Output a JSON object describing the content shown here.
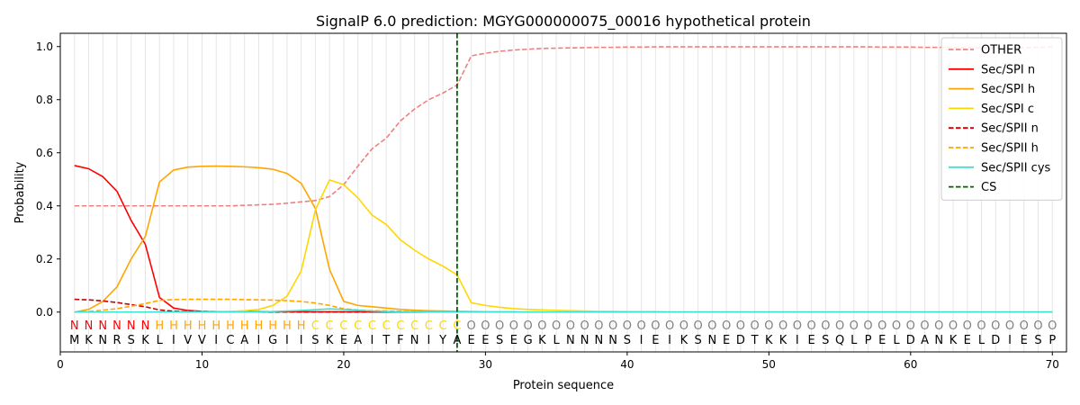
{
  "chart_data": {
    "type": "line",
    "title": "SignalP 6.0 prediction: MGYG000000075_00016 hypothetical protein",
    "xlabel": "Protein sequence",
    "ylabel": "Probability",
    "xlim": [
      0,
      71
    ],
    "ylim": [
      -0.15,
      1.05
    ],
    "xticks": [
      0,
      10,
      20,
      30,
      40,
      50,
      60,
      70
    ],
    "yticks": [
      0.0,
      0.2,
      0.4,
      0.6,
      0.8,
      1.0
    ],
    "ytick_labels": [
      "0.0",
      "0.2",
      "0.4",
      "0.6",
      "0.8",
      "1.0"
    ],
    "grid": "vertical lines at each residue",
    "legend_position": "top-right",
    "sequence": [
      "M",
      "K",
      "N",
      "R",
      "S",
      "K",
      "L",
      "I",
      "V",
      "V",
      "I",
      "C",
      "A",
      "I",
      "G",
      "I",
      "I",
      "S",
      "K",
      "E",
      "A",
      "I",
      "T",
      "F",
      "N",
      "I",
      "Y",
      "A",
      "E",
      "E",
      "S",
      "E",
      "G",
      "K",
      "L",
      "N",
      "N",
      "N",
      "N",
      "S",
      "I",
      "E",
      "I",
      "K",
      "S",
      "N",
      "E",
      "D",
      "T",
      "K",
      "K",
      "I",
      "E",
      "S",
      "Q",
      "L",
      "P",
      "E",
      "L",
      "D",
      "A",
      "N",
      "K",
      "E",
      "L",
      "D",
      "I",
      "E",
      "S",
      "P"
    ],
    "region_labels": [
      "N",
      "N",
      "N",
      "N",
      "N",
      "N",
      "H",
      "H",
      "H",
      "H",
      "H",
      "H",
      "H",
      "H",
      "H",
      "H",
      "H",
      "C",
      "C",
      "C",
      "C",
      "C",
      "C",
      "C",
      "C",
      "C",
      "C",
      "C",
      "O",
      "O",
      "O",
      "O",
      "O",
      "O",
      "O",
      "O",
      "O",
      "O",
      "O",
      "O",
      "O",
      "O",
      "O",
      "O",
      "O",
      "O",
      "O",
      "O",
      "O",
      "O",
      "O",
      "O",
      "O",
      "O",
      "O",
      "O",
      "O",
      "O",
      "O",
      "O",
      "O",
      "O",
      "O",
      "O",
      "O",
      "O",
      "O",
      "O",
      "O",
      "O"
    ],
    "cleavage_site": {
      "name": "CS",
      "x": 28,
      "color": "#006400"
    },
    "series": [
      {
        "name": "OTHER",
        "color": "#f08080",
        "dash": true,
        "values": [
          0.4,
          0.4,
          0.4,
          0.4,
          0.4,
          0.4,
          0.4,
          0.4,
          0.4,
          0.4,
          0.4,
          0.4,
          0.402,
          0.404,
          0.406,
          0.41,
          0.415,
          0.42,
          0.435,
          0.48,
          0.55,
          0.615,
          0.655,
          0.72,
          0.765,
          0.8,
          0.825,
          0.855,
          0.965,
          0.975,
          0.982,
          0.987,
          0.99,
          0.993,
          0.994,
          0.995,
          0.996,
          0.997,
          0.997,
          0.998,
          0.998,
          0.999,
          0.999,
          0.999,
          0.999,
          0.999,
          0.999,
          0.999,
          0.999,
          0.999,
          0.999,
          0.999,
          0.999,
          0.999,
          0.999,
          0.999,
          0.999,
          0.998,
          0.998,
          0.998,
          0.997,
          0.997,
          0.996,
          0.996,
          0.995,
          0.995,
          0.995,
          0.996,
          0.997,
          0.999
        ]
      },
      {
        "name": "Sec/SPI n",
        "color": "#ff0000",
        "dash": false,
        "values": [
          0.552,
          0.54,
          0.51,
          0.455,
          0.345,
          0.255,
          0.055,
          0.015,
          0.006,
          0.003,
          0.002,
          0.001,
          0.001,
          0.001,
          0.001,
          0.001,
          0.001,
          0.001,
          0.001,
          0.001,
          0.001,
          0,
          0,
          0,
          0,
          0,
          0,
          0,
          0,
          0,
          0,
          0,
          0,
          0,
          0,
          0,
          0,
          0,
          0,
          0,
          0,
          0,
          0,
          0,
          0,
          0,
          0,
          0,
          0,
          0,
          0,
          0,
          0,
          0,
          0,
          0,
          0,
          0,
          0,
          0,
          0,
          0,
          0,
          0,
          0,
          0,
          0,
          0,
          0,
          0
        ]
      },
      {
        "name": "Sec/SPI h",
        "color": "#ffa500",
        "dash": false,
        "values": [
          0,
          0.01,
          0.04,
          0.095,
          0.2,
          0.285,
          0.49,
          0.535,
          0.546,
          0.549,
          0.55,
          0.549,
          0.547,
          0.544,
          0.538,
          0.522,
          0.485,
          0.39,
          0.16,
          0.04,
          0.025,
          0.02,
          0.015,
          0.01,
          0.007,
          0.005,
          0.004,
          0.003,
          0.002,
          0.001,
          0.001,
          0.001,
          0,
          0,
          0,
          0,
          0,
          0,
          0,
          0,
          0,
          0,
          0,
          0,
          0,
          0,
          0,
          0,
          0,
          0,
          0,
          0,
          0,
          0,
          0,
          0,
          0,
          0,
          0,
          0,
          0,
          0,
          0,
          0,
          0,
          0,
          0,
          0,
          0,
          0
        ]
      },
      {
        "name": "Sec/SPI c",
        "color": "#ffd700",
        "dash": false,
        "values": [
          0,
          0,
          0,
          0,
          0,
          0,
          0.001,
          0.001,
          0.001,
          0.002,
          0.002,
          0.003,
          0.005,
          0.01,
          0.025,
          0.06,
          0.155,
          0.385,
          0.498,
          0.48,
          0.43,
          0.365,
          0.33,
          0.272,
          0.233,
          0.2,
          0.173,
          0.14,
          0.035,
          0.025,
          0.018,
          0.013,
          0.01,
          0.008,
          0.006,
          0.005,
          0.004,
          0.003,
          0.003,
          0.002,
          0.002,
          0.002,
          0.001,
          0.001,
          0.001,
          0.001,
          0.001,
          0.001,
          0.001,
          0.001,
          0.001,
          0.001,
          0.001,
          0.001,
          0.001,
          0.001,
          0.001,
          0.001,
          0.001,
          0.001,
          0.001,
          0.001,
          0.001,
          0.001,
          0.001,
          0.001,
          0.001,
          0.001,
          0.001,
          0.001
        ]
      },
      {
        "name": "Sec/SPII n",
        "color": "#cc0000",
        "dash": true,
        "values": [
          0.048,
          0.046,
          0.042,
          0.036,
          0.028,
          0.02,
          0.008,
          0.003,
          0.001,
          0.001,
          0,
          0,
          0,
          0,
          0,
          0,
          0,
          0,
          0,
          0,
          0,
          0,
          0,
          0,
          0,
          0,
          0,
          0,
          0,
          0,
          0,
          0,
          0,
          0,
          0,
          0,
          0,
          0,
          0,
          0,
          0,
          0,
          0,
          0,
          0,
          0,
          0,
          0,
          0,
          0,
          0,
          0,
          0,
          0,
          0,
          0,
          0,
          0,
          0,
          0,
          0,
          0,
          0,
          0,
          0,
          0,
          0,
          0,
          0,
          0
        ]
      },
      {
        "name": "Sec/SPII h",
        "color": "#ffa500",
        "dash": true,
        "values": [
          0,
          0.002,
          0.007,
          0.013,
          0.022,
          0.032,
          0.044,
          0.047,
          0.048,
          0.048,
          0.048,
          0.048,
          0.047,
          0.046,
          0.045,
          0.043,
          0.04,
          0.034,
          0.025,
          0.012,
          0.008,
          0.005,
          0.004,
          0.003,
          0.002,
          0.002,
          0.001,
          0.001,
          0,
          0,
          0,
          0,
          0,
          0,
          0,
          0,
          0,
          0,
          0,
          0,
          0,
          0,
          0,
          0,
          0,
          0,
          0,
          0,
          0,
          0,
          0,
          0,
          0,
          0,
          0,
          0,
          0,
          0,
          0,
          0,
          0,
          0,
          0,
          0,
          0,
          0,
          0,
          0,
          0,
          0
        ]
      },
      {
        "name": "Sec/SPII cys",
        "color": "#40e0d0",
        "dash": false,
        "values": [
          0,
          0,
          0,
          0,
          0,
          0,
          0,
          0,
          0,
          0,
          0,
          0,
          0,
          0,
          0.002,
          0.004,
          0.006,
          0.009,
          0.012,
          0.01,
          0.007,
          0.004,
          0.002,
          0.001,
          0.001,
          0,
          0,
          0,
          0,
          0,
          0,
          0,
          0,
          0,
          0,
          0,
          0,
          0,
          0,
          0,
          0,
          0,
          0,
          0,
          0,
          0,
          0,
          0,
          0,
          0,
          0,
          0,
          0,
          0,
          0,
          0,
          0,
          0,
          0,
          0,
          0,
          0,
          0,
          0,
          0,
          0,
          0,
          0,
          0,
          0
        ]
      }
    ]
  }
}
